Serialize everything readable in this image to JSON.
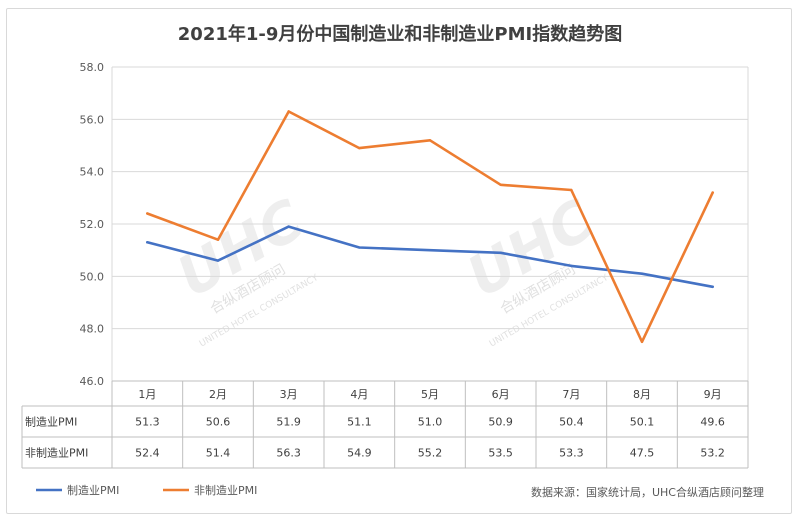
{
  "title": "2021年1-9月份中国制造业和非制造业PMI指数趋势图",
  "source": "数据来源：国家统计局，UHC合纵酒店顾问整理",
  "watermark": {
    "logo": "UHC",
    "cn": "合纵酒店顾问",
    "en": "UNITED HOTEL CONSULTANCY"
  },
  "chart_data": {
    "type": "line",
    "title": "2021年1-9月份中国制造业和非制造业PMI指数趋势图",
    "categories": [
      "1月",
      "2月",
      "3月",
      "4月",
      "5月",
      "6月",
      "7月",
      "8月",
      "9月"
    ],
    "series": [
      {
        "name": "制造业PMI",
        "color": "#4472c4",
        "values": [
          51.3,
          50.6,
          51.9,
          51.1,
          51.0,
          50.9,
          50.4,
          50.1,
          49.6
        ]
      },
      {
        "name": "非制造业PMI",
        "color": "#ed7d31",
        "values": [
          52.4,
          51.4,
          56.3,
          54.9,
          55.2,
          53.5,
          53.3,
          47.5,
          53.2
        ]
      }
    ],
    "yticks": [
      "46.0",
      "48.0",
      "50.0",
      "52.0",
      "54.0",
      "56.0",
      "58.0"
    ],
    "ylim": [
      46,
      58
    ],
    "grid": true,
    "legend": "bottom-left",
    "data_table": true
  }
}
